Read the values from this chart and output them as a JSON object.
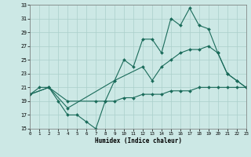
{
  "xlabel": "Humidex (Indice chaleur)",
  "bg_color": "#cce8e5",
  "grid_color": "#aacfcb",
  "line_color": "#1a6b5a",
  "xlim": [
    0,
    23
  ],
  "ylim": [
    15,
    33
  ],
  "xticks": [
    0,
    1,
    2,
    3,
    4,
    5,
    6,
    7,
    8,
    9,
    10,
    11,
    12,
    13,
    14,
    15,
    16,
    17,
    18,
    19,
    20,
    21,
    22,
    23
  ],
  "yticks": [
    15,
    17,
    19,
    21,
    23,
    25,
    27,
    29,
    31,
    33
  ],
  "line1_x": [
    0,
    1,
    2,
    3,
    4,
    5,
    6,
    7,
    8,
    9,
    10,
    11,
    12,
    13,
    14,
    15,
    16,
    17,
    18,
    19,
    20,
    21,
    22,
    23
  ],
  "line1_y": [
    20,
    21,
    21,
    19,
    17,
    17,
    16,
    15,
    19,
    22,
    25,
    24,
    28,
    28,
    26,
    31,
    30,
    32.5,
    30,
    29.5,
    26,
    23,
    22,
    21
  ],
  "line2_x": [
    0,
    2,
    4,
    9,
    12,
    13,
    14,
    15,
    16,
    17,
    18,
    19,
    20,
    21,
    22,
    23
  ],
  "line2_y": [
    20,
    21,
    18,
    22,
    24,
    22,
    24,
    25,
    26,
    26.5,
    26.5,
    27,
    26,
    23,
    22,
    21
  ],
  "line3_x": [
    0,
    2,
    4,
    7,
    8,
    9,
    10,
    11,
    12,
    13,
    14,
    15,
    16,
    17,
    18,
    19,
    20,
    21,
    22,
    23
  ],
  "line3_y": [
    20,
    21,
    19,
    19,
    19,
    19,
    19.5,
    19.5,
    20,
    20,
    20,
    20.5,
    20.5,
    20.5,
    21,
    21,
    21,
    21,
    21,
    21
  ]
}
